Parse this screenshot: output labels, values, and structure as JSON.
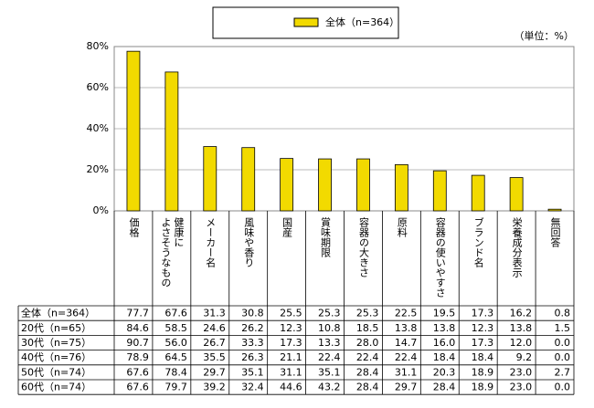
{
  "chart_data": {
    "type": "bar",
    "unit_note": "（単位：%）",
    "categories": [
      "価格",
      "健康に\nよさそうなもの",
      "メーカー名",
      "風味や香り",
      "国産",
      "賞味期限",
      "容器の大きさ",
      "原料",
      "容器の使いやすさ",
      "ブランド名",
      "栄養成分表示",
      "無回答"
    ],
    "ylim": [
      0,
      80
    ],
    "yticks": [
      {
        "value": 0,
        "label": "0%"
      },
      {
        "value": 20,
        "label": "20%"
      },
      {
        "value": 40,
        "label": "40%"
      },
      {
        "value": 60,
        "label": "60%"
      },
      {
        "value": 80,
        "label": "80%"
      }
    ],
    "grid": true,
    "series": [
      {
        "name": "全体（n=364）",
        "color": "#f2da00",
        "values": [
          77.7,
          67.6,
          31.3,
          30.8,
          25.5,
          25.3,
          25.3,
          22.5,
          19.5,
          17.3,
          16.2,
          0.8
        ],
        "value_labels": [
          "77.7",
          "67.6",
          "31.3",
          "30.8",
          "25.5",
          "25.3",
          "25.3",
          "22.5",
          "19.5",
          "17.3",
          "16.2",
          "0.8"
        ]
      },
      {
        "name": "20代（n=65）",
        "values": [
          84.6,
          58.5,
          24.6,
          26.2,
          12.3,
          10.8,
          18.5,
          13.8,
          13.8,
          12.3,
          13.8,
          1.5
        ],
        "value_labels": [
          "84.6",
          "58.5",
          "24.6",
          "26.2",
          "12.3",
          "10.8",
          "18.5",
          "13.8",
          "13.8",
          "12.3",
          "13.8",
          "1.5"
        ]
      },
      {
        "name": "30代（n=75）",
        "values": [
          90.7,
          56.0,
          26.7,
          33.3,
          17.3,
          13.3,
          28.0,
          14.7,
          16.0,
          17.3,
          12.0,
          0.0
        ],
        "value_labels": [
          "90.7",
          "56.0",
          "26.7",
          "33.3",
          "17.3",
          "13.3",
          "28.0",
          "14.7",
          "16.0",
          "17.3",
          "12.0",
          "0.0"
        ]
      },
      {
        "name": "40代（n=76）",
        "values": [
          78.9,
          64.5,
          35.5,
          26.3,
          21.1,
          22.4,
          22.4,
          22.4,
          18.4,
          18.4,
          9.2,
          0.0
        ],
        "value_labels": [
          "78.9",
          "64.5",
          "35.5",
          "26.3",
          "21.1",
          "22.4",
          "22.4",
          "22.4",
          "18.4",
          "18.4",
          "9.2",
          "0.0"
        ]
      },
      {
        "name": "50代（n=74）",
        "values": [
          67.6,
          78.4,
          29.7,
          35.1,
          31.1,
          35.1,
          28.4,
          31.1,
          20.3,
          18.9,
          23.0,
          2.7
        ],
        "value_labels": [
          "67.6",
          "78.4",
          "29.7",
          "35.1",
          "31.1",
          "35.1",
          "28.4",
          "31.1",
          "20.3",
          "18.9",
          "23.0",
          "2.7"
        ]
      },
      {
        "name": "60代（n=74）",
        "values": [
          67.6,
          79.7,
          39.2,
          32.4,
          44.6,
          43.2,
          28.4,
          29.7,
          28.4,
          18.9,
          23.0,
          0.0
        ],
        "value_labels": [
          "67.6",
          "79.7",
          "39.2",
          "32.4",
          "44.6",
          "43.2",
          "28.4",
          "29.7",
          "28.4",
          "18.9",
          "23.0",
          "0.0"
        ]
      }
    ]
  }
}
